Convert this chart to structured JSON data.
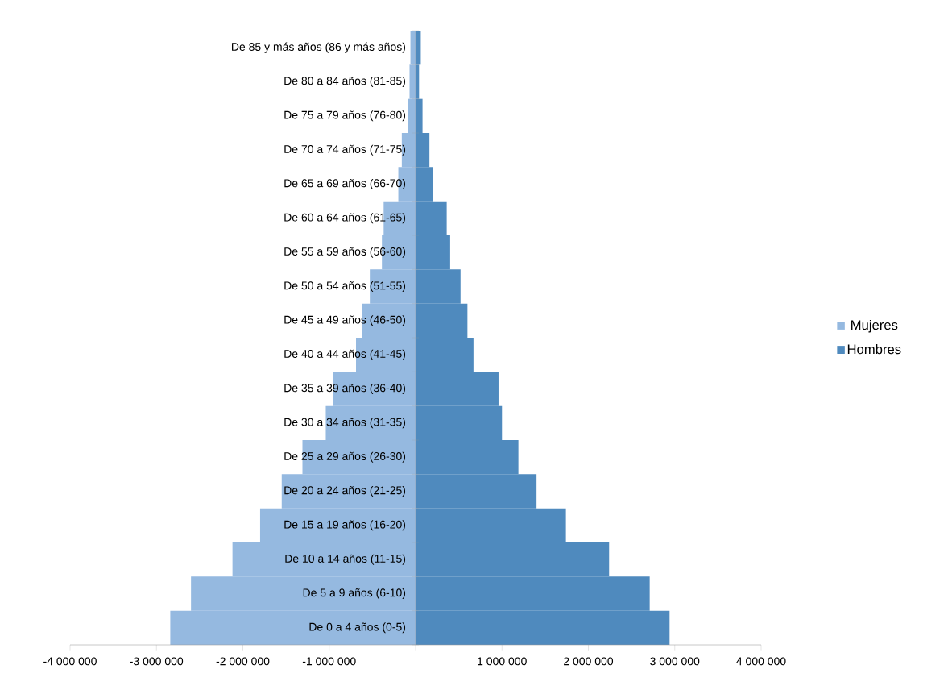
{
  "chart_data": {
    "type": "bar",
    "orientation": "horizontal",
    "stacked": true,
    "categories": [
      "De 85 y más años (86 y más años)",
      "De 80 a 84 años (81-85)",
      "De 75 a 79 años (76-80)",
      "De 70 a 74 años (71-75)",
      "De 65 a 69 años (66-70)",
      "De 60 a 64 años (61-65)",
      "De 55 a 59 años (56-60)",
      "De 50 a 54 años (51-55)",
      "De 45 a 49 años (46-50)",
      "De 40 a 44 años (41-45)",
      "De 35 a 39 años (36-40)",
      "De 30 a 34 años (31-35)",
      "De 25 a 29 años (26-30)",
      "De 20 a 24 años (21-25)",
      "De 15 a 19 años (16-20)",
      "De 10 a 14 años (11-15)",
      "De 5 a 9 años (6-10)",
      "De 0 a 4 años (0-5)"
    ],
    "series": [
      {
        "name": "Mujeres",
        "color": "#95b9e0",
        "values": [
          -60000,
          -70000,
          -90000,
          -160000,
          -200000,
          -370000,
          -390000,
          -530000,
          -620000,
          -690000,
          -960000,
          -1040000,
          -1310000,
          -1550000,
          -1800000,
          -2120000,
          -2600000,
          -2840000
        ]
      },
      {
        "name": "Hombres",
        "color": "#4f8abe",
        "values": [
          60000,
          40000,
          80000,
          160000,
          200000,
          360000,
          400000,
          520000,
          600000,
          670000,
          960000,
          1000000,
          1190000,
          1400000,
          1740000,
          2240000,
          2710000,
          2940000
        ]
      }
    ],
    "xlim": [
      -4000000,
      4000000
    ],
    "xticks": [
      {
        "value": -4000000,
        "label": "-4 000 000"
      },
      {
        "value": -3000000,
        "label": "-3 000 000"
      },
      {
        "value": -2000000,
        "label": "-2 000 000"
      },
      {
        "value": -1000000,
        "label": "-1 000 000"
      },
      {
        "value": 0,
        "label": null
      },
      {
        "value": 1000000,
        "label": "1 000 000"
      },
      {
        "value": 2000000,
        "label": "2 000 000"
      },
      {
        "value": 3000000,
        "label": "3 000 000"
      },
      {
        "value": 4000000,
        "label": "4 000 000"
      }
    ],
    "legend": "right"
  }
}
